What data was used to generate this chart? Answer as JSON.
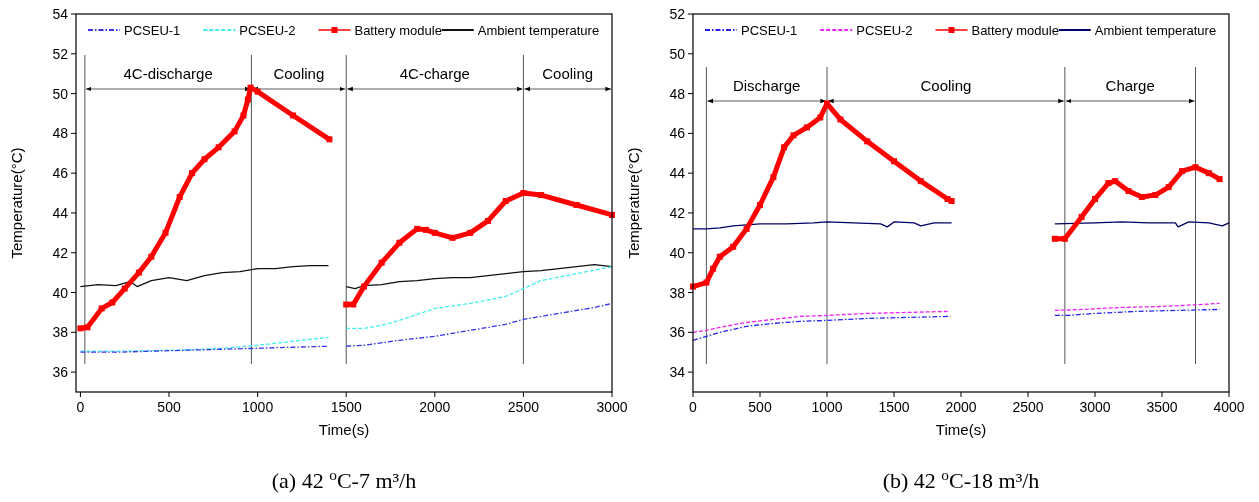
{
  "chart_data": [
    {
      "type": "line",
      "title": "(a) 42 $^{o}$C-7 m³/h",
      "xlabel": "Time(s)",
      "ylabel": "Temperature(°C)",
      "xlim": [
        -25,
        3000
      ],
      "ylim": [
        35,
        54
      ],
      "xticks": [
        0,
        500,
        1000,
        1500,
        2000,
        2500,
        3000
      ],
      "yticks": [
        36,
        38,
        40,
        42,
        44,
        46,
        48,
        50,
        52,
        54
      ],
      "grid": false,
      "legend": "top",
      "line_style": "solid",
      "ref_lines": [
        {
          "axis": "x",
          "value": 25
        },
        {
          "axis": "x",
          "value": 965
        },
        {
          "axis": "x",
          "value": 1500
        },
        {
          "axis": "x",
          "value": 2500
        }
      ],
      "annotations": [
        "4C-discharge",
        "Cooling",
        "4C-charge",
        "Cooling"
      ],
      "series": [
        {
          "name": "PCSEU-1",
          "color": "#3333ee",
          "line_style": "dashdot",
          "x": [
            0,
            200,
            400,
            600,
            800,
            1000,
            1200,
            1400,
            1450,
            1500,
            1600,
            1800,
            2000,
            2200,
            2400,
            2500,
            2700,
            2900,
            3000
          ],
          "values": [
            37.0,
            37.0,
            37.05,
            37.1,
            37.15,
            37.2,
            37.25,
            37.3,
            null,
            37.3,
            37.35,
            37.6,
            37.8,
            38.1,
            38.4,
            38.65,
            38.95,
            39.25,
            39.45
          ]
        },
        {
          "name": "PCSEU-2",
          "color": "#44eeee",
          "line_style": "dashed",
          "x": [
            0,
            200,
            400,
            600,
            800,
            1000,
            1200,
            1400,
            1450,
            1500,
            1600,
            1700,
            1800,
            1900,
            2000,
            2200,
            2400,
            2500,
            2600,
            2800,
            3000
          ],
          "values": [
            37.05,
            37.05,
            37.08,
            37.12,
            37.2,
            37.35,
            37.55,
            37.75,
            null,
            38.2,
            38.2,
            38.35,
            38.6,
            38.9,
            39.2,
            39.45,
            39.8,
            40.2,
            40.6,
            40.95,
            41.3
          ]
        },
        {
          "name": "Battery module",
          "color": "#ff0000",
          "marker": "square",
          "x": [
            0,
            40,
            120,
            180,
            250,
            330,
            400,
            480,
            560,
            630,
            700,
            780,
            870,
            920,
            945,
            960,
            1000,
            1200,
            1405,
            1450,
            1500,
            1540,
            1600,
            1700,
            1800,
            1900,
            1950,
            2000,
            2100,
            2200,
            2300,
            2400,
            2500,
            2600,
            2800,
            3000
          ],
          "values": [
            38.2,
            38.25,
            39.2,
            39.5,
            40.2,
            41.0,
            41.8,
            43.0,
            44.8,
            46.0,
            46.7,
            47.3,
            48.1,
            48.9,
            49.7,
            50.3,
            50.1,
            48.9,
            47.7,
            null,
            39.4,
            39.4,
            40.3,
            41.5,
            42.5,
            43.2,
            43.15,
            43.0,
            42.75,
            43.0,
            43.6,
            44.6,
            45.0,
            44.9,
            44.4,
            43.9
          ]
        },
        {
          "name": "Ambient temperature",
          "color": "#111111",
          "x": [
            0,
            100,
            200,
            280,
            320,
            400,
            500,
            600,
            700,
            800,
            900,
            1000,
            1100,
            1200,
            1300,
            1400,
            1450,
            1500,
            1550,
            1600,
            1700,
            1800,
            1900,
            2000,
            2100,
            2200,
            2300,
            2400,
            2500,
            2600,
            2700,
            2800,
            2900,
            3000
          ],
          "values": [
            40.3,
            40.4,
            40.35,
            40.55,
            40.3,
            40.6,
            40.75,
            40.6,
            40.85,
            41.0,
            41.05,
            41.2,
            41.2,
            41.3,
            41.35,
            41.35,
            null,
            40.3,
            40.2,
            40.35,
            40.4,
            40.55,
            40.6,
            40.7,
            40.75,
            40.75,
            40.85,
            40.95,
            41.05,
            41.1,
            41.2,
            41.3,
            41.4,
            41.3
          ]
        }
      ]
    },
    {
      "type": "line",
      "title": "(b) 42 $^{o}$C-18 m³/h",
      "xlabel": "Time(s)",
      "ylabel": "Temperature(°C)",
      "xlim": [
        0,
        4000
      ],
      "ylim": [
        33,
        52
      ],
      "xticks": [
        0,
        500,
        1000,
        1500,
        2000,
        2500,
        3000,
        3500,
        4000
      ],
      "yticks": [
        34,
        36,
        38,
        40,
        42,
        44,
        46,
        48,
        50,
        52
      ],
      "grid": false,
      "legend": "top",
      "line_style": "solid",
      "ref_lines": [
        {
          "axis": "x",
          "value": 100
        },
        {
          "axis": "x",
          "value": 1000
        },
        {
          "axis": "x",
          "value": 2775
        },
        {
          "axis": "x",
          "value": 3750
        }
      ],
      "annotations": [
        "Discharge",
        "Cooling",
        "Charge"
      ],
      "series": [
        {
          "name": "PCSEU-1",
          "color": "#2222ee",
          "line_style": "dashdot",
          "x": [
            0,
            100,
            200,
            400,
            600,
            800,
            1000,
            1300,
            1600,
            1920,
            2300,
            2700,
            2800,
            3000,
            3300,
            3600,
            3930
          ],
          "values": [
            35.6,
            35.8,
            36.0,
            36.3,
            36.45,
            36.55,
            36.6,
            36.7,
            36.75,
            36.8,
            null,
            36.85,
            36.85,
            36.95,
            37.05,
            37.1,
            37.15
          ]
        },
        {
          "name": "PCSEU-2",
          "color": "#ee22ee",
          "line_style": "dashed",
          "x": [
            0,
            100,
            200,
            400,
            600,
            800,
            1000,
            1300,
            1600,
            1900,
            2300,
            2700,
            2900,
            3200,
            3500,
            3930
          ],
          "values": [
            36.0,
            36.1,
            36.25,
            36.5,
            36.65,
            36.8,
            36.85,
            36.95,
            37.0,
            37.05,
            null,
            37.1,
            37.15,
            37.25,
            37.3,
            37.45
          ]
        },
        {
          "name": "Battery module",
          "color": "#ff0000",
          "marker": "square",
          "x": [
            0,
            100,
            150,
            200,
            300,
            400,
            500,
            600,
            680,
            750,
            850,
            950,
            1000,
            1100,
            1300,
            1500,
            1700,
            1900,
            1930,
            2300,
            2700,
            2775,
            2900,
            3000,
            3100,
            3150,
            3250,
            3350,
            3450,
            3550,
            3650,
            3750,
            3850,
            3930
          ],
          "values": [
            38.3,
            38.5,
            39.2,
            39.8,
            40.3,
            41.2,
            42.4,
            43.8,
            45.3,
            45.9,
            46.3,
            46.8,
            47.5,
            46.7,
            45.6,
            44.6,
            43.6,
            42.7,
            42.6,
            null,
            40.7,
            40.7,
            41.8,
            42.7,
            43.5,
            43.6,
            43.1,
            42.8,
            42.9,
            43.3,
            44.1,
            44.3,
            44.0,
            43.7
          ]
        },
        {
          "name": "Ambient temperature",
          "color": "#000066",
          "x": [
            0,
            100,
            200,
            300,
            500,
            700,
            900,
            1000,
            1200,
            1400,
            1450,
            1500,
            1650,
            1700,
            1800,
            1900,
            1930,
            2300,
            2700,
            3000,
            3200,
            3400,
            3600,
            3620,
            3700,
            3850,
            3950,
            4000
          ],
          "values": [
            41.2,
            41.2,
            41.25,
            41.35,
            41.45,
            41.45,
            41.5,
            41.55,
            41.5,
            41.45,
            41.3,
            41.55,
            41.5,
            41.35,
            41.5,
            41.5,
            41.5,
            null,
            41.45,
            41.5,
            41.55,
            41.5,
            41.5,
            41.3,
            41.55,
            41.5,
            41.35,
            41.5
          ]
        }
      ]
    }
  ]
}
